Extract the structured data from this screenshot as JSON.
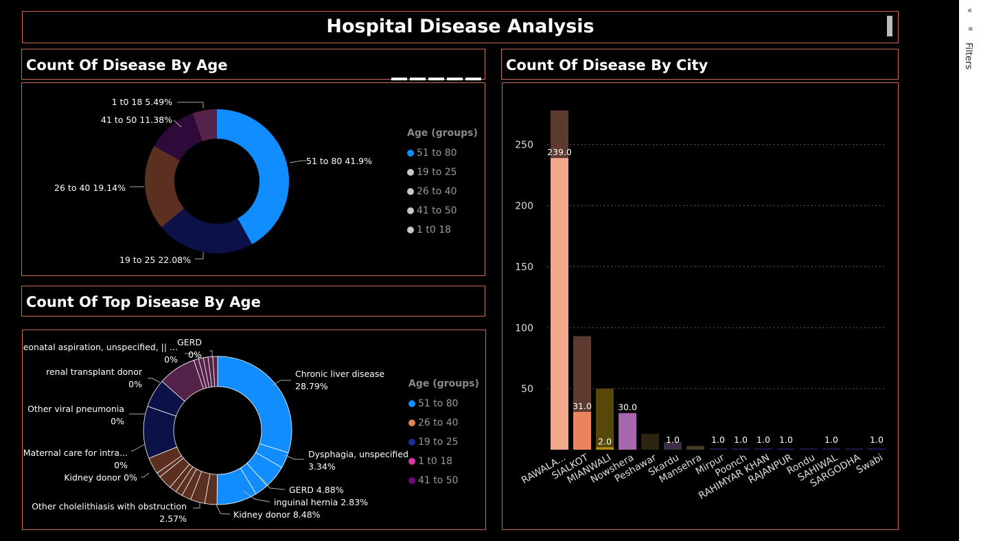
{
  "page": {
    "title": "Hospital Disease Analysis"
  },
  "panels": {
    "age": {
      "header": "Count Of Disease By Age"
    },
    "top": {
      "header": "Count Of Top Disease By Age"
    },
    "city": {
      "header": "Count Of Disease By City"
    }
  },
  "filters": {
    "label": "Filters",
    "collapse_icon": "«",
    "filter_icon": "≡"
  },
  "colors": {
    "background": "#000000",
    "border": "#c86a55"
  },
  "donut_age": {
    "slices": [
      {
        "label": "51 to 80 41.9%",
        "value": 41.9,
        "color": "#118dff"
      },
      {
        "label": "19 to 25 22.08%",
        "value": 22.08,
        "color": "#0c1248"
      },
      {
        "label": "26 to 40 19.14%",
        "value": 19.14,
        "color": "#5c3020"
      },
      {
        "label": "41 to 50 11.38%",
        "value": 11.38,
        "color": "#2e0a3a"
      },
      {
        "label": "1 t0 18 5.49%",
        "value": 5.49,
        "color": "#55224a"
      }
    ],
    "legend": {
      "title": "Age (groups)",
      "items": [
        {
          "label": "51 to 80",
          "color": "#118dff"
        },
        {
          "label": "19 to 25",
          "color": "#c8c8c8"
        },
        {
          "label": "26 to 40",
          "color": "#c8c8c8"
        },
        {
          "label": "41 to 50",
          "color": "#c8c8c8"
        },
        {
          "label": "1 t0 18",
          "color": "#c8c8c8"
        }
      ]
    }
  },
  "donut_top": {
    "slices": [
      {
        "value": 28.79,
        "color": "#118dff"
      },
      {
        "value": 3.34,
        "color": "#118dff"
      },
      {
        "value": 4.88,
        "color": "#118dff"
      },
      {
        "value": 2.83,
        "color": "#118dff"
      },
      {
        "value": 8.48,
        "color": "#118dff"
      },
      {
        "value": 2.57,
        "color": "#5c3020"
      },
      {
        "value": 3.0,
        "color": "#5c3020"
      },
      {
        "value": 2.0,
        "color": "#5c3020"
      },
      {
        "value": 1.5,
        "color": "#5c3020"
      },
      {
        "value": 1.5,
        "color": "#5c3020"
      },
      {
        "value": 3.0,
        "color": "#5c3020"
      },
      {
        "value": 1.0,
        "color": "#5c3020"
      },
      {
        "value": 3.5,
        "color": "#5c3020"
      },
      {
        "value": 11.0,
        "color": "#0c1248"
      },
      {
        "value": 6.0,
        "color": "#0c1248"
      },
      {
        "value": 8.0,
        "color": "#55224a"
      },
      {
        "value": 1.0,
        "color": "#55224a"
      },
      {
        "value": 1.0,
        "color": "#55224a"
      },
      {
        "value": 1.0,
        "color": "#55224a"
      },
      {
        "value": 1.0,
        "color": "#55224a"
      },
      {
        "value": 1.0,
        "color": "#55224a"
      }
    ],
    "labels": [
      {
        "l1": "Chronic liver disease",
        "l2": "28.79%"
      },
      {
        "l1": "Dysphagia, unspecified",
        "l2": "3.34%"
      },
      {
        "l1": "GERD 4.88%",
        "l2": ""
      },
      {
        "l1": "inguinal hernia 2.83%",
        "l2": ""
      },
      {
        "l1": "Kidney donor 8.48%",
        "l2": ""
      },
      {
        "l1": "Other cholelithiasis with obstruction",
        "l2": "2.57%"
      },
      {
        "l1": "Kidney donor 0%",
        "l2": ""
      },
      {
        "l1": "Maternal care for intra...",
        "l2": "0%"
      },
      {
        "l1": "Other viral pneumonia",
        "l2": "0%"
      },
      {
        "l1": "renal transplant donor",
        "l2": "0%"
      },
      {
        "l1": "Neonatal aspiration, unspecified, || ...",
        "l2": "0%"
      },
      {
        "l1": "GERD",
        "l2": "0%"
      }
    ],
    "legend": {
      "title": "Age (groups)",
      "items": [
        {
          "label": "51 to 80",
          "color": "#118dff"
        },
        {
          "label": "26 to 40",
          "color": "#e8834e"
        },
        {
          "label": "19 to 25",
          "color": "#1c2f9a"
        },
        {
          "label": "1 t0 18",
          "color": "#d63aa8"
        },
        {
          "label": "41 to 50",
          "color": "#6b0a78"
        }
      ]
    }
  },
  "chart_data": {
    "type": "bar",
    "title": "Count Of Disease By City",
    "categories": [
      "RAWALA...",
      "SIALKOT",
      "MIANWALI",
      "Nowshera",
      "Peshawar",
      "Skardu",
      "Mansehra",
      "Mirpur",
      "Poonch",
      "RAHIMYAR KHAN",
      "RAJANPUR",
      "Rondu",
      "SAHIWAL",
      "SARGODHA",
      "Swabi"
    ],
    "totals": [
      278,
      93,
      50,
      30,
      13,
      6,
      3,
      1,
      1,
      1,
      1,
      1,
      1,
      1,
      1
    ],
    "highlight": [
      239,
      31,
      2,
      30,
      0,
      0,
      0,
      0,
      0,
      0,
      0,
      0,
      0,
      0,
      0
    ],
    "data_labels": [
      "239.0",
      "31.0",
      "2.0",
      "30.0",
      "",
      "1.0",
      "",
      "1.0",
      "1.0",
      "1.0",
      "1.0",
      "",
      "1.0",
      "",
      "1.0"
    ],
    "background_colors": [
      "#5c3a30",
      "#5c3a30",
      "#564808",
      "#564808",
      "#2c2410",
      "#3c2e44",
      "#443c22",
      "#1a1f58",
      "#1a1f58",
      "#1a1f58",
      "#1a1f58",
      "#1a1f58",
      "#1a1f58",
      "#1a1f58",
      "#1a1f58"
    ],
    "highlight_colors": [
      "#f0a98b",
      "#ea845c",
      "#b38a10",
      "#a866b0",
      "#000000",
      "#000000",
      "#000000",
      "#000000",
      "#000000",
      "#000000",
      "#000000",
      "#000000",
      "#000000",
      "#000000",
      "#000000"
    ],
    "yticks": [
      50,
      100,
      150,
      200,
      250
    ],
    "ylim": [
      0,
      285
    ],
    "grid": "dotted horizontal"
  }
}
